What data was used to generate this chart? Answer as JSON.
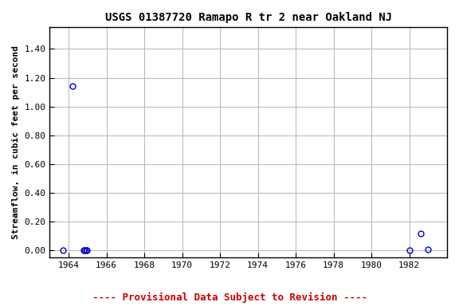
{
  "title": "USGS 01387720 Ramapo R tr 2 near Oakland NJ",
  "xlabel": "",
  "ylabel": "Streamflow, in cubic feet per second",
  "x_data": [
    1963.7,
    1964.2,
    1964.8,
    1964.85,
    1964.9,
    1964.95,
    1982.0,
    1982.6,
    1983.0
  ],
  "y_data": [
    0.0,
    1.14,
    0.0,
    0.0,
    0.0,
    0.0,
    0.0,
    0.12,
    0.01
  ],
  "xlim": [
    1963.0,
    1984.0
  ],
  "ylim": [
    -0.05,
    1.55
  ],
  "yticks": [
    0.0,
    0.2,
    0.4,
    0.6,
    0.8,
    1.0,
    1.2,
    1.4
  ],
  "xticks": [
    1964,
    1966,
    1968,
    1970,
    1972,
    1974,
    1976,
    1978,
    1980,
    1982
  ],
  "marker_color": "#0000cc",
  "marker_size": 5,
  "grid_color": "#bbbbbb",
  "bg_color": "#ffffff",
  "plot_bg": "#ffffff",
  "title_fontsize": 10,
  "label_fontsize": 8,
  "tick_fontsize": 8,
  "footnote": "---- Provisional Data Subject to Revision ----",
  "footnote_color": "#cc0000",
  "footnote_fontsize": 9
}
